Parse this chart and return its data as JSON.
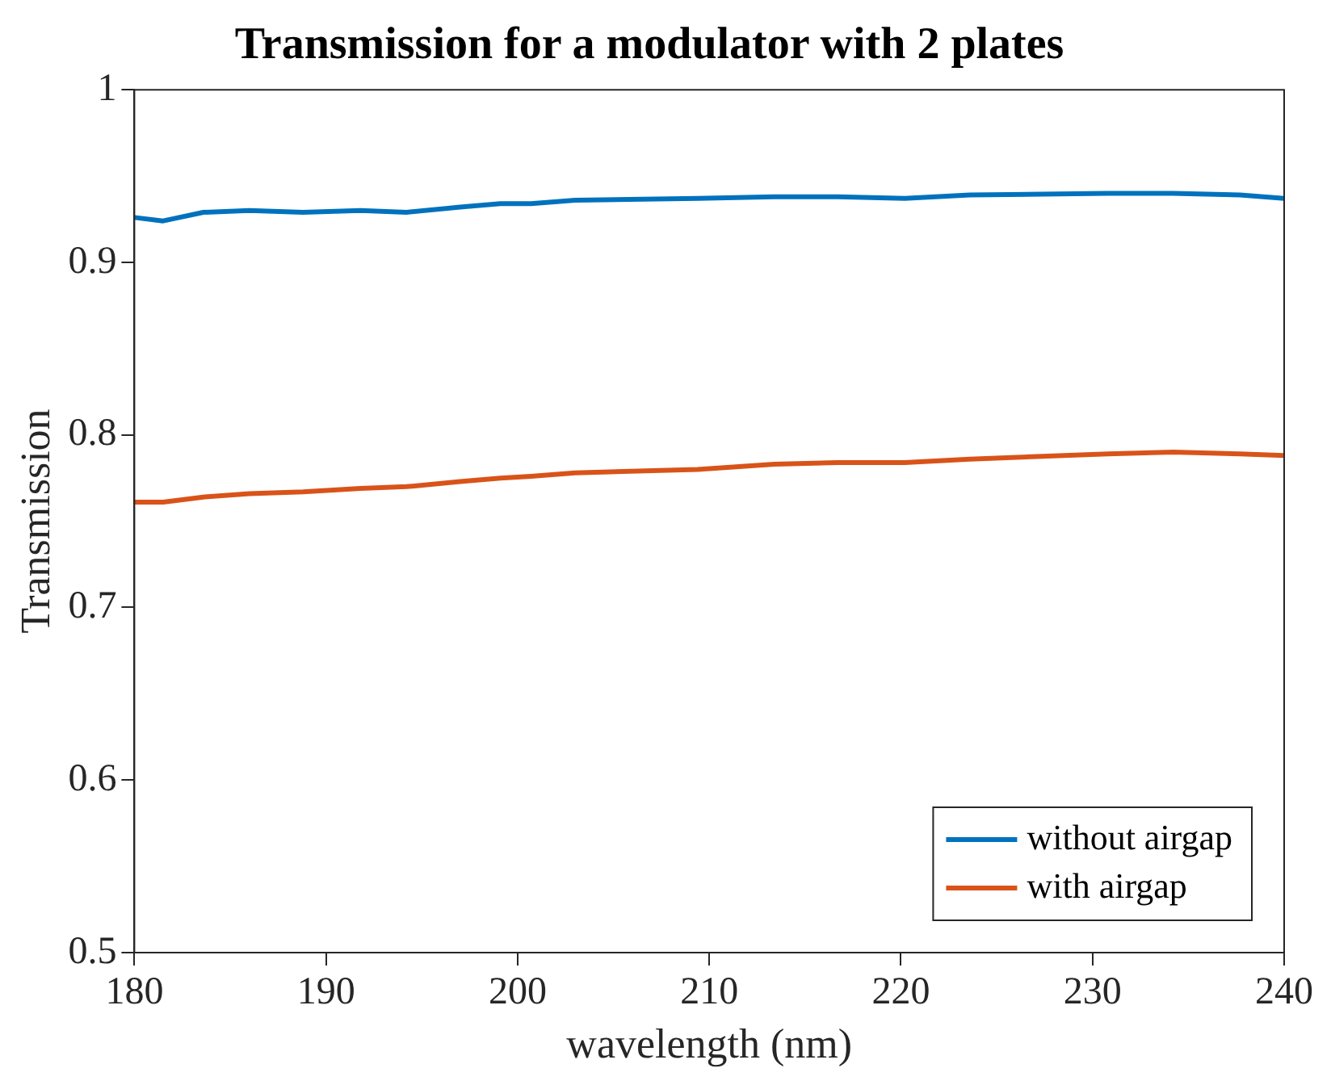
{
  "chart_data": {
    "type": "line",
    "title": "Transmission for a modulator with 2 plates",
    "xlabel": "wavelength (nm)",
    "ylabel": "Transmission",
    "x": [
      180,
      181.5,
      183.6,
      186,
      188.8,
      191.8,
      194.2,
      197,
      199.1,
      200.7,
      203,
      209.4,
      213.4,
      216.7,
      220.2,
      223.6,
      230.8,
      234.2,
      237.7,
      240
    ],
    "series": [
      {
        "name": "without airgap",
        "color": "#0072bd",
        "values": [
          0.926,
          0.924,
          0.929,
          0.93,
          0.929,
          0.93,
          0.929,
          0.932,
          0.934,
          0.934,
          0.936,
          0.937,
          0.938,
          0.938,
          0.937,
          0.939,
          0.94,
          0.94,
          0.939,
          0.937
        ]
      },
      {
        "name": "with airgap",
        "color": "#d95319",
        "values": [
          0.761,
          0.761,
          0.764,
          0.766,
          0.767,
          0.769,
          0.77,
          0.773,
          0.775,
          0.776,
          0.778,
          0.78,
          0.783,
          0.784,
          0.784,
          0.786,
          0.789,
          0.79,
          0.789,
          0.788
        ]
      }
    ],
    "xlim": [
      180,
      240
    ],
    "xticks": [
      180,
      190,
      200,
      210,
      220,
      230,
      240
    ],
    "ylim": [
      0.5,
      1
    ],
    "yticks": [
      0.5,
      0.6,
      0.7,
      0.8,
      0.9,
      1
    ],
    "grid": false,
    "legend": "bottom right",
    "marker": "none",
    "line_style": "solid"
  }
}
